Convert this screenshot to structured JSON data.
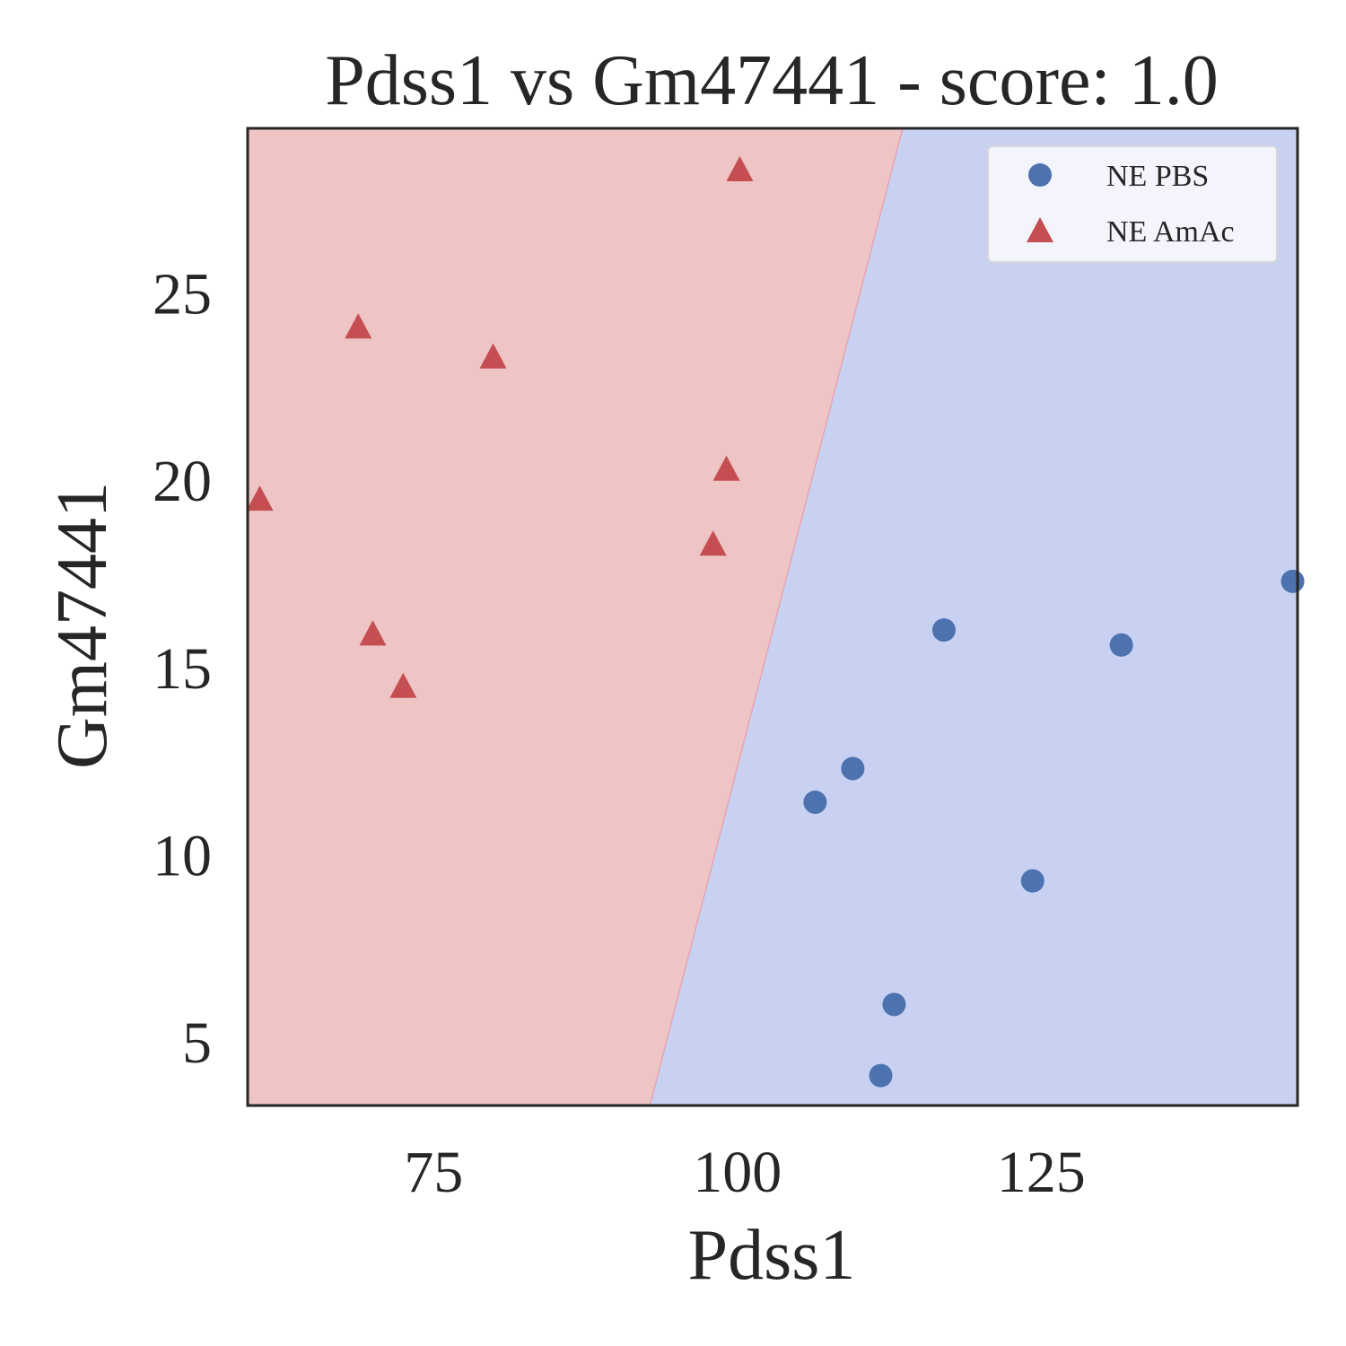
{
  "chart_data": {
    "type": "scatter",
    "title": "Pdss1 vs Gm47441 - score: 1.0",
    "xlabel": "Pdss1",
    "ylabel": "Gm47441",
    "xlim": [
      59.7,
      146.1
    ],
    "ylim": [
      3.3,
      29.4
    ],
    "xticks": [
      75,
      100,
      125
    ],
    "yticks": [
      5,
      10,
      15,
      20,
      25
    ],
    "grid": false,
    "legend_position": "top-right",
    "decision_boundary": {
      "points": [
        [
          92.8,
          3.3
        ],
        [
          113.6,
          29.4
        ]
      ],
      "left_region": "NE AmAc",
      "right_region": "NE PBS"
    },
    "region_colors": {
      "NE AmAc": "#eec4c4",
      "NE PBS": "#c9d1f2"
    },
    "series": [
      {
        "name": "NE PBS",
        "marker": "circle",
        "color": "#4c72b0",
        "points": [
          [
            145.7,
            17.3
          ],
          [
            117.0,
            16.0
          ],
          [
            131.6,
            15.6
          ],
          [
            109.5,
            12.3
          ],
          [
            106.4,
            11.4
          ],
          [
            124.3,
            9.3
          ],
          [
            112.9,
            6.0
          ],
          [
            111.8,
            4.1
          ]
        ]
      },
      {
        "name": "NE AmAc",
        "marker": "triangle",
        "color": "#c44e52",
        "points": [
          [
            100.2,
            28.3
          ],
          [
            68.8,
            24.1
          ],
          [
            79.9,
            23.3
          ],
          [
            99.1,
            20.3
          ],
          [
            60.7,
            19.5
          ],
          [
            98.0,
            18.3
          ],
          [
            70.0,
            15.9
          ],
          [
            72.5,
            14.5
          ]
        ]
      }
    ]
  }
}
